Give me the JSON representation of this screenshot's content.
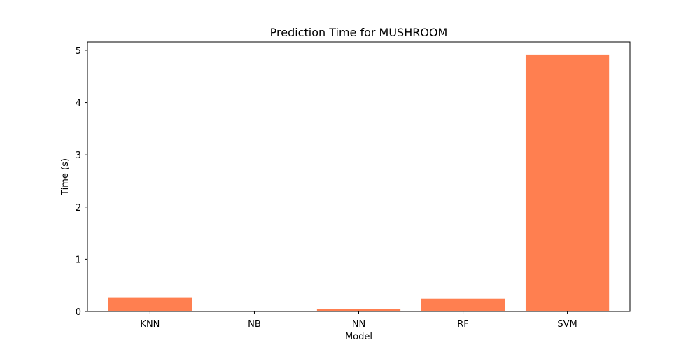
{
  "chart_data": {
    "type": "bar",
    "title": "Prediction Time for MUSHROOM",
    "xlabel": "Model",
    "ylabel": "Time (s)",
    "categories": [
      "KNN",
      "NB",
      "NN",
      "RF",
      "SVM"
    ],
    "values": [
      0.26,
      0.0,
      0.045,
      0.245,
      4.92
    ],
    "ylim": [
      0,
      5.16
    ],
    "yticks": [
      0,
      1,
      2,
      3,
      4,
      5
    ],
    "grid": false,
    "bar_color": "#ff7f50"
  }
}
